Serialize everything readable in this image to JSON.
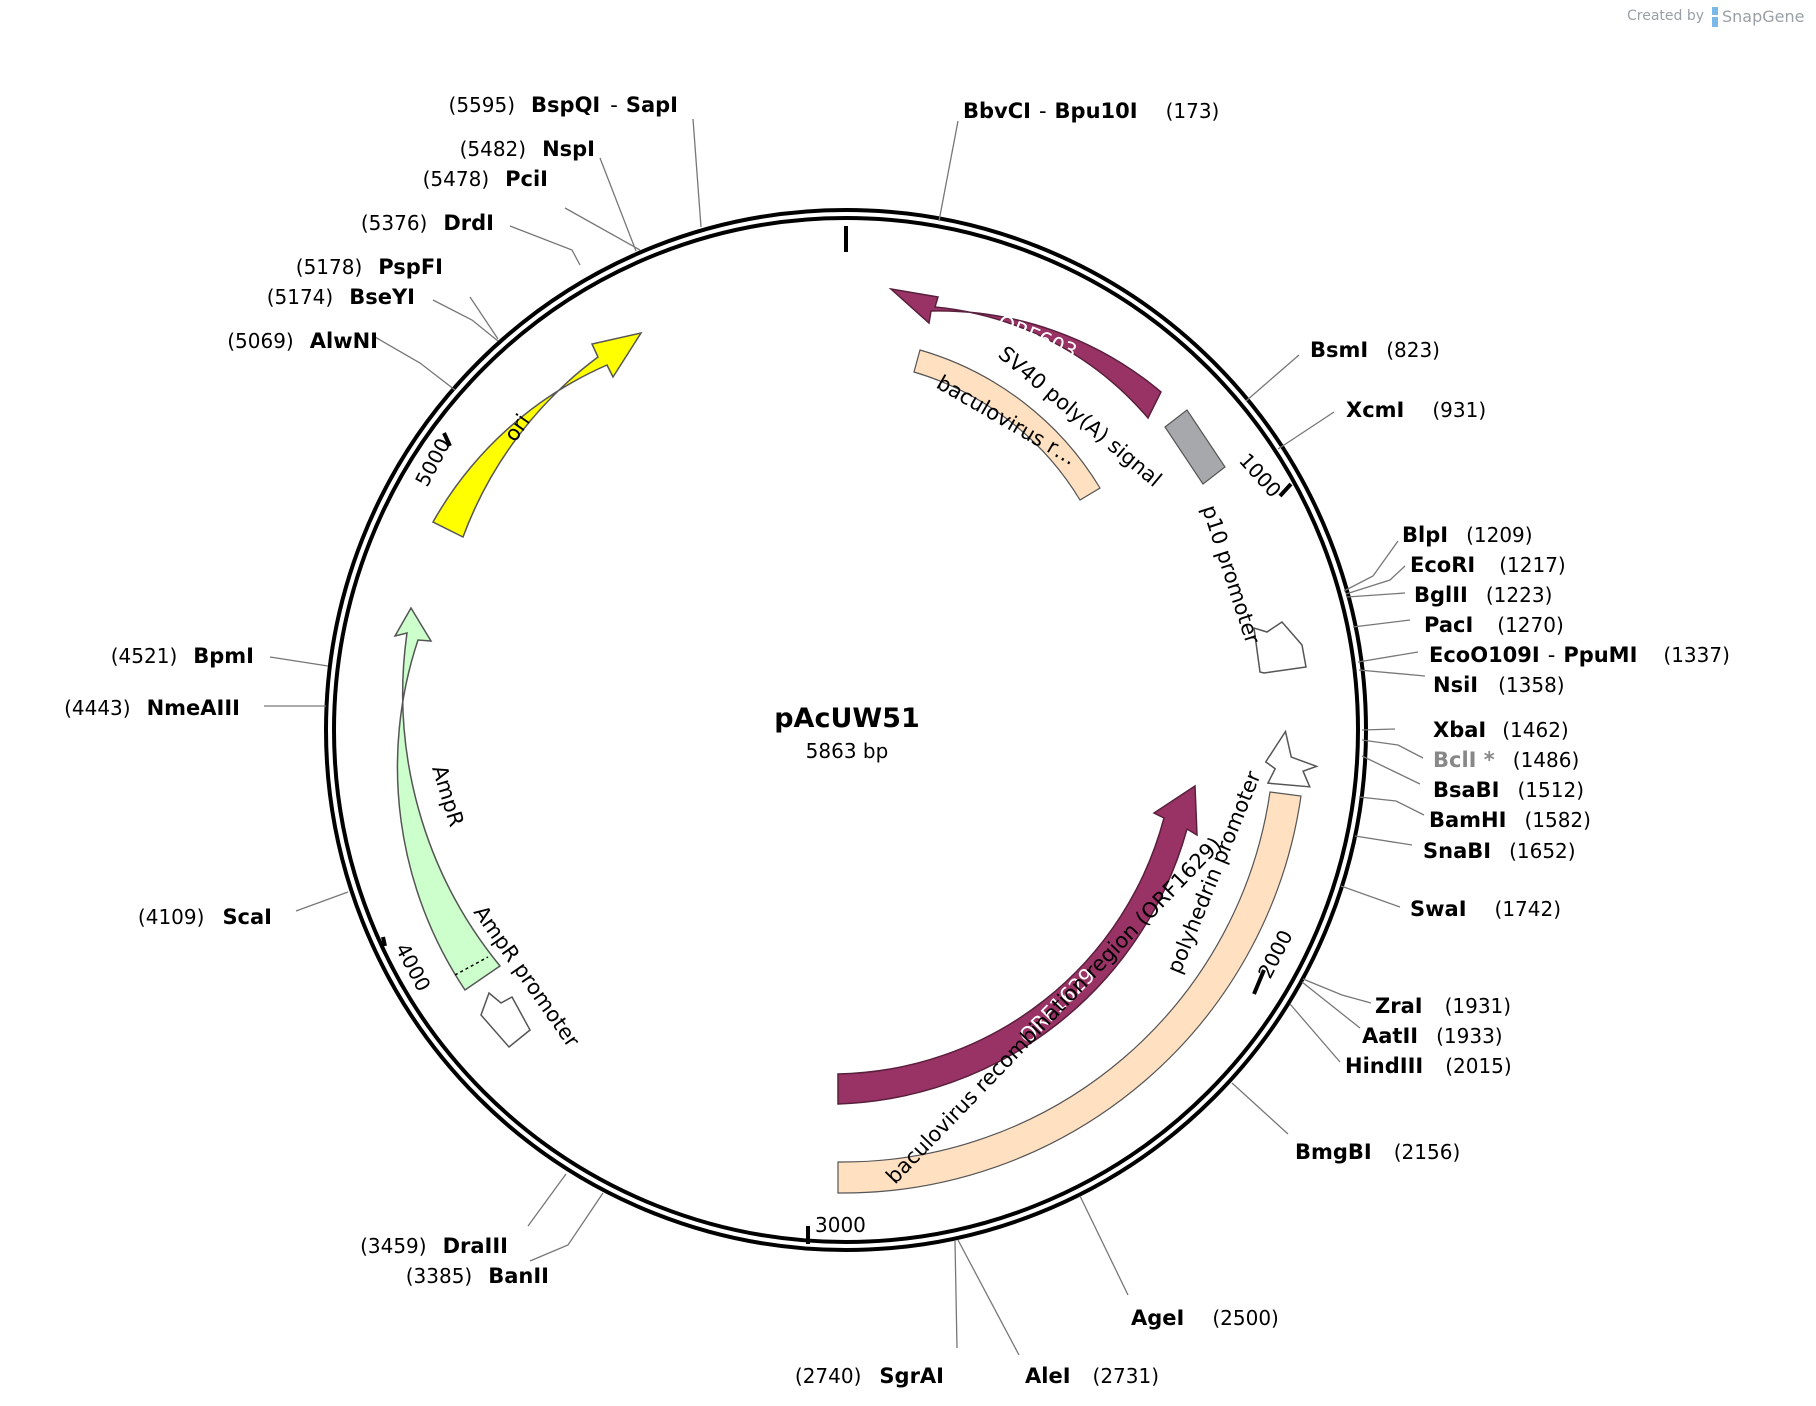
{
  "plasmid": {
    "name": "pAcUW51",
    "size_label": "5863 bp",
    "length": 5863
  },
  "credit": {
    "prefix": "Created by",
    "brand": "SnapGene"
  },
  "ticks": [
    "1000",
    "2000",
    "3000",
    "4000",
    "5000"
  ],
  "sites": [
    {
      "id": "s1",
      "names": [
        "BbvCI",
        "Bpu10I"
      ],
      "pos": "(173)"
    },
    {
      "id": "s2",
      "names": [
        "BsmI"
      ],
      "pos": "(823)"
    },
    {
      "id": "s3",
      "names": [
        "XcmI"
      ],
      "pos": "(931)"
    },
    {
      "id": "s4",
      "names": [
        "BlpI"
      ],
      "pos": "(1209)"
    },
    {
      "id": "s5",
      "names": [
        "EcoRI"
      ],
      "pos": "(1217)"
    },
    {
      "id": "s6",
      "names": [
        "BglII"
      ],
      "pos": "(1223)"
    },
    {
      "id": "s7",
      "names": [
        "PacI"
      ],
      "pos": "(1270)"
    },
    {
      "id": "s8",
      "names": [
        "EcoO109I",
        "PpuMI"
      ],
      "pos": "(1337)"
    },
    {
      "id": "s9",
      "names": [
        "NsiI"
      ],
      "pos": "(1358)"
    },
    {
      "id": "s10",
      "names": [
        "XbaI"
      ],
      "pos": "(1462)"
    },
    {
      "id": "s11",
      "names": [
        "BclI *"
      ],
      "pos": "(1486)",
      "dim": true
    },
    {
      "id": "s12",
      "names": [
        "BsaBI"
      ],
      "pos": "(1512)"
    },
    {
      "id": "s13",
      "names": [
        "BamHI"
      ],
      "pos": "(1582)"
    },
    {
      "id": "s14",
      "names": [
        "SnaBI"
      ],
      "pos": "(1652)"
    },
    {
      "id": "s15",
      "names": [
        "SwaI"
      ],
      "pos": "(1742)"
    },
    {
      "id": "s16",
      "names": [
        "ZraI"
      ],
      "pos": "(1931)"
    },
    {
      "id": "s17",
      "names": [
        "AatII"
      ],
      "pos": "(1933)"
    },
    {
      "id": "s18",
      "names": [
        "HindIII"
      ],
      "pos": "(2015)"
    },
    {
      "id": "s19",
      "names": [
        "BmgBI"
      ],
      "pos": "(2156)"
    },
    {
      "id": "s20",
      "names": [
        "AgeI"
      ],
      "pos": "(2500)"
    },
    {
      "id": "s21",
      "names": [
        "AleI"
      ],
      "pos": "(2731)"
    },
    {
      "id": "s22",
      "names": [
        "SgrAI"
      ],
      "pos": "(2740)"
    },
    {
      "id": "s23",
      "names": [
        "BanII"
      ],
      "pos": "(3385)"
    },
    {
      "id": "s24",
      "names": [
        "DraIII"
      ],
      "pos": "(3459)"
    },
    {
      "id": "s25",
      "names": [
        "ScaI"
      ],
      "pos": "(4109)"
    },
    {
      "id": "s26",
      "names": [
        "NmeAIII"
      ],
      "pos": "(4443)"
    },
    {
      "id": "s27",
      "names": [
        "BpmI"
      ],
      "pos": "(4521)"
    },
    {
      "id": "s28",
      "names": [
        "AlwNI"
      ],
      "pos": "(5069)"
    },
    {
      "id": "s29",
      "names": [
        "BseYI"
      ],
      "pos": "(5174)"
    },
    {
      "id": "s30",
      "names": [
        "PspFI"
      ],
      "pos": "(5178)"
    },
    {
      "id": "s31",
      "names": [
        "DrdI"
      ],
      "pos": "(5376)"
    },
    {
      "id": "s32",
      "names": [
        "PciI"
      ],
      "pos": "(5478)"
    },
    {
      "id": "s33",
      "names": [
        "NspI"
      ],
      "pos": "(5482)"
    },
    {
      "id": "s34",
      "names": [
        "BspQI",
        "SapI"
      ],
      "pos": "(5595)"
    }
  ],
  "features": {
    "orf603": "ORF603",
    "baculo_short": "baculovirus r…",
    "sv40": "SV40 poly(A) signal",
    "p10": "p10 promoter",
    "ori": "ori",
    "ampr": "AmpR",
    "ampr_promoter": "AmpR promoter",
    "orf1629": "ORF1629",
    "polyhedrin": "polyhedrin promoter",
    "baculo_long": "baculovirus recombination region (ORF1629)"
  },
  "colors": {
    "orf": "#993366",
    "ori": "#ffff00",
    "ampr": "#ccffcc",
    "baculo": "#ffe0c0",
    "sv40": "#a6a8ab",
    "backbone": "#000000"
  }
}
